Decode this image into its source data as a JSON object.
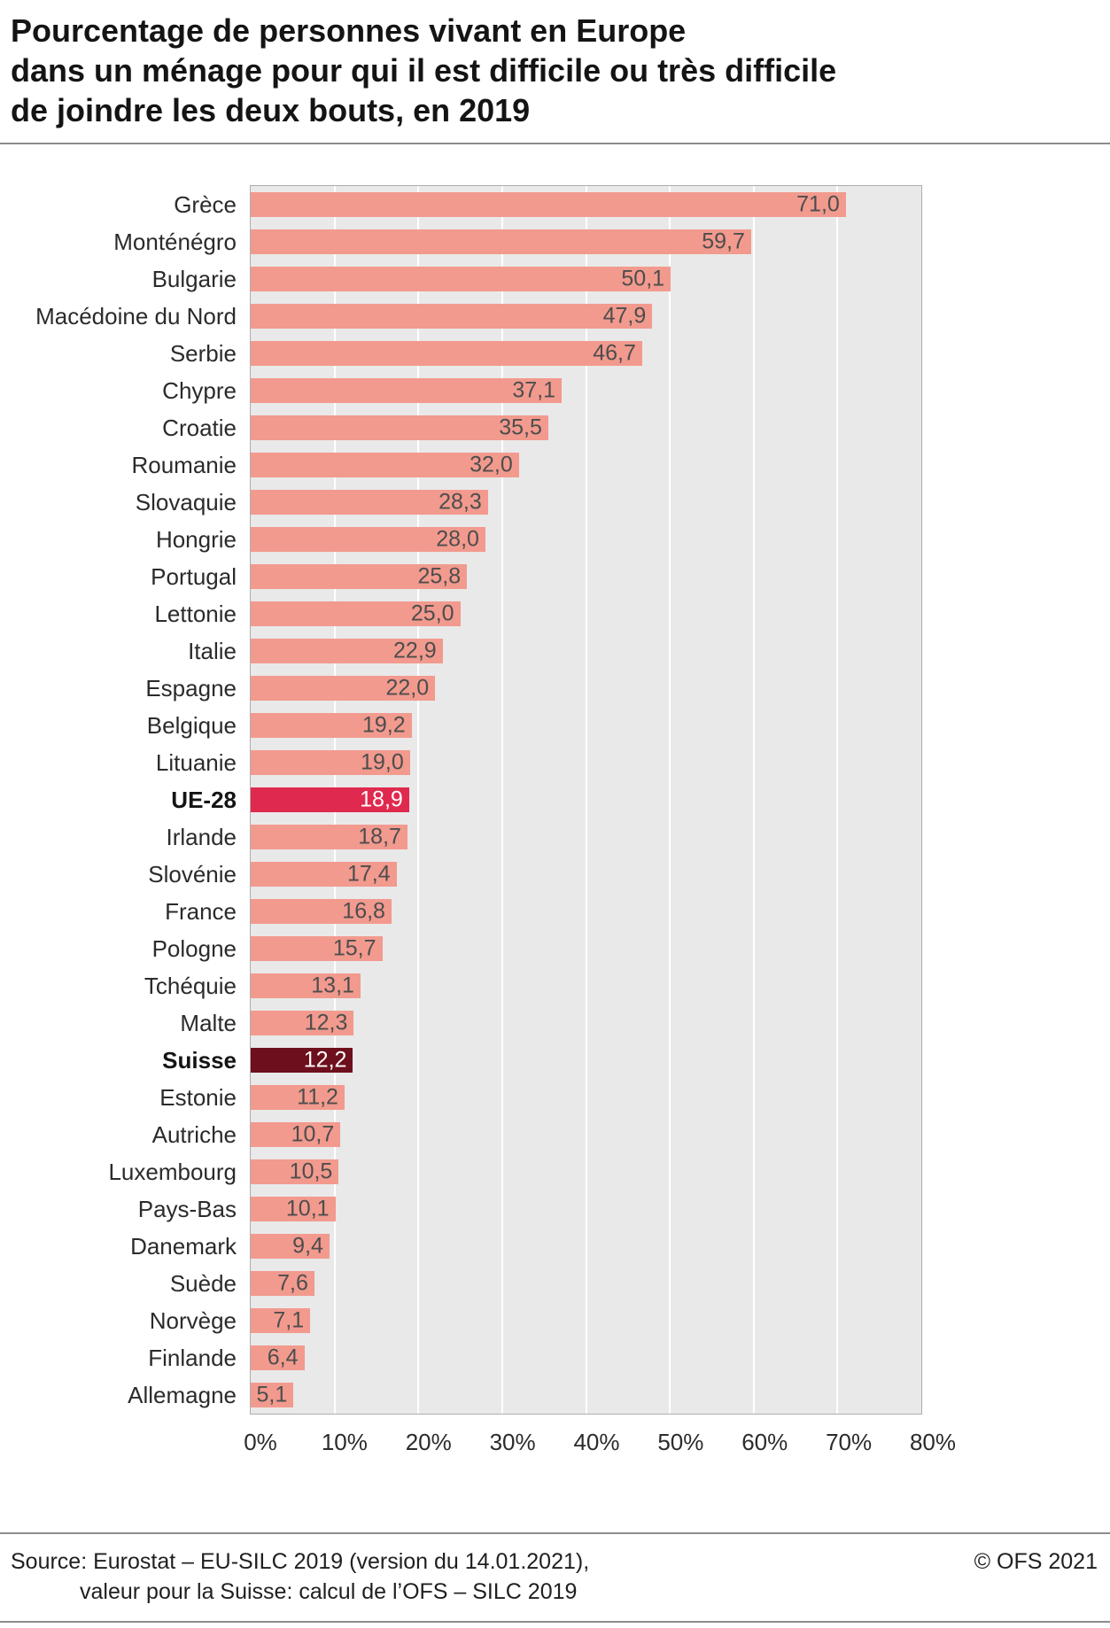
{
  "title": {
    "lines": [
      "Pourcentage de personnes vivant en Europe",
      "dans un ménage pour qui il est difficile ou très difficile",
      "de joindre les deux bouts, en 2019"
    ]
  },
  "chart_data": {
    "type": "bar",
    "orientation": "horizontal",
    "unit": "%",
    "xlim": [
      0,
      80
    ],
    "grid": "vertical-white-lines",
    "legend": "none",
    "x_ticks": [
      {
        "value": 0,
        "label": "0%"
      },
      {
        "value": 10,
        "label": "10%"
      },
      {
        "value": 20,
        "label": "20%"
      },
      {
        "value": 30,
        "label": "30%"
      },
      {
        "value": 40,
        "label": "40%"
      },
      {
        "value": 50,
        "label": "50%"
      },
      {
        "value": 60,
        "label": "60%"
      },
      {
        "value": 70,
        "label": "70%"
      },
      {
        "value": 80,
        "label": "80%"
      }
    ],
    "colors": {
      "normal": "#f29a8e",
      "eu": "#e0294e",
      "ch": "#6e0f1d",
      "plot_background": "#e9e9e9",
      "gridline": "#ffffff",
      "value_text": "#4d4d4d",
      "value_text_light": "#ffffff"
    },
    "items": [
      {
        "label": "Grèce",
        "value": 71.0,
        "display": "71,0",
        "kind": "normal"
      },
      {
        "label": "Monténégro",
        "value": 59.7,
        "display": "59,7",
        "kind": "normal"
      },
      {
        "label": "Bulgarie",
        "value": 50.1,
        "display": "50,1",
        "kind": "normal"
      },
      {
        "label": "Macédoine du Nord",
        "value": 47.9,
        "display": "47,9",
        "kind": "normal"
      },
      {
        "label": "Serbie",
        "value": 46.7,
        "display": "46,7",
        "kind": "normal"
      },
      {
        "label": "Chypre",
        "value": 37.1,
        "display": "37,1",
        "kind": "normal"
      },
      {
        "label": "Croatie",
        "value": 35.5,
        "display": "35,5",
        "kind": "normal"
      },
      {
        "label": "Roumanie",
        "value": 32.0,
        "display": "32,0",
        "kind": "normal"
      },
      {
        "label": "Slovaquie",
        "value": 28.3,
        "display": "28,3",
        "kind": "normal"
      },
      {
        "label": "Hongrie",
        "value": 28.0,
        "display": "28,0",
        "kind": "normal"
      },
      {
        "label": "Portugal",
        "value": 25.8,
        "display": "25,8",
        "kind": "normal"
      },
      {
        "label": "Lettonie",
        "value": 25.0,
        "display": "25,0",
        "kind": "normal"
      },
      {
        "label": "Italie",
        "value": 22.9,
        "display": "22,9",
        "kind": "normal"
      },
      {
        "label": "Espagne",
        "value": 22.0,
        "display": "22,0",
        "kind": "normal"
      },
      {
        "label": "Belgique",
        "value": 19.2,
        "display": "19,2",
        "kind": "normal"
      },
      {
        "label": "Lituanie",
        "value": 19.0,
        "display": "19,0",
        "kind": "normal"
      },
      {
        "label": "UE-28",
        "value": 18.9,
        "display": "18,9",
        "kind": "eu"
      },
      {
        "label": "Irlande",
        "value": 18.7,
        "display": "18,7",
        "kind": "normal"
      },
      {
        "label": "Slovénie",
        "value": 17.4,
        "display": "17,4",
        "kind": "normal"
      },
      {
        "label": "France",
        "value": 16.8,
        "display": "16,8",
        "kind": "normal"
      },
      {
        "label": "Pologne",
        "value": 15.7,
        "display": "15,7",
        "kind": "normal"
      },
      {
        "label": "Tchéquie",
        "value": 13.1,
        "display": "13,1",
        "kind": "normal"
      },
      {
        "label": "Malte",
        "value": 12.3,
        "display": "12,3",
        "kind": "normal"
      },
      {
        "label": "Suisse",
        "value": 12.2,
        "display": "12,2",
        "kind": "ch"
      },
      {
        "label": "Estonie",
        "value": 11.2,
        "display": "11,2",
        "kind": "normal"
      },
      {
        "label": "Autriche",
        "value": 10.7,
        "display": "10,7",
        "kind": "normal"
      },
      {
        "label": "Luxembourg",
        "value": 10.5,
        "display": "10,5",
        "kind": "normal"
      },
      {
        "label": "Pays-Bas",
        "value": 10.1,
        "display": "10,1",
        "kind": "normal"
      },
      {
        "label": "Danemark",
        "value": 9.4,
        "display": "9,4",
        "kind": "normal"
      },
      {
        "label": "Suède",
        "value": 7.6,
        "display": "7,6",
        "kind": "normal"
      },
      {
        "label": "Norvège",
        "value": 7.1,
        "display": "7,1",
        "kind": "normal"
      },
      {
        "label": "Finlande",
        "value": 6.4,
        "display": "6,4",
        "kind": "normal"
      },
      {
        "label": "Allemagne",
        "value": 5.1,
        "display": "5,1",
        "kind": "normal"
      }
    ]
  },
  "footer": {
    "source_line1": "Source: Eurostat – EU-SILC 2019 (version du 14.01.2021),",
    "source_line2": "valeur pour la Suisse: calcul de l’OFS – SILC 2019",
    "copyright": "© OFS 2021"
  }
}
